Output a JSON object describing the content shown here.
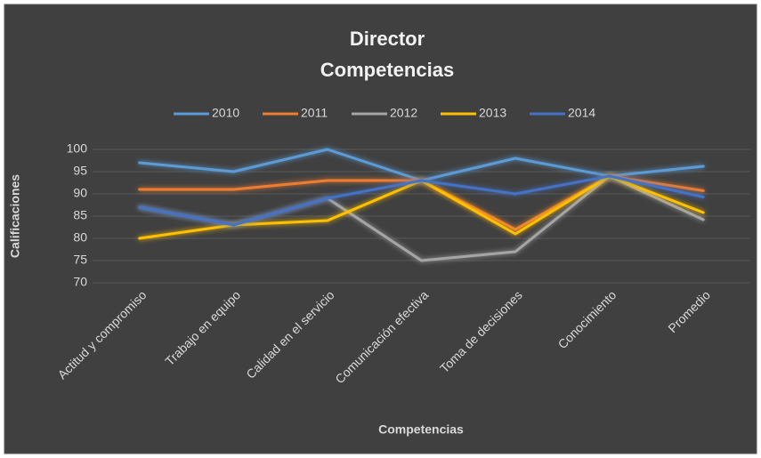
{
  "chart_data": {
    "type": "line",
    "title": "Director",
    "subtitle": "Competencias",
    "x_label": "Competencias",
    "y_label": "Calificaciones",
    "categories": [
      "Actitud y compromiso",
      "Trabajo en equipo",
      "Calidad en el servicio",
      "Comunicación efectiva",
      "Toma de decisiones",
      "Conocimiento",
      "Promedio"
    ],
    "series": [
      {
        "name": "2010",
        "color": "#5b9bd5",
        "values": [
          97,
          95,
          100,
          93,
          98,
          94,
          96.2
        ]
      },
      {
        "name": "2011",
        "color": "#ed7d31",
        "values": [
          91,
          91,
          93,
          93,
          82,
          94,
          90.7
        ]
      },
      {
        "name": "2012",
        "color": "#a5a5a5",
        "values": [
          87,
          83,
          89,
          75,
          77,
          94,
          84.2
        ]
      },
      {
        "name": "2013",
        "color": "#ffc000",
        "values": [
          80,
          83,
          84,
          93,
          81,
          94,
          85.8
        ]
      },
      {
        "name": "2014",
        "color": "#4472c4",
        "values": [
          87,
          83,
          89,
          93,
          90,
          94,
          89.3
        ]
      }
    ],
    "ylim": [
      70,
      100
    ],
    "yticks": [
      70,
      75,
      80,
      85,
      90,
      95,
      100
    ],
    "grid": true,
    "legend": "top"
  }
}
